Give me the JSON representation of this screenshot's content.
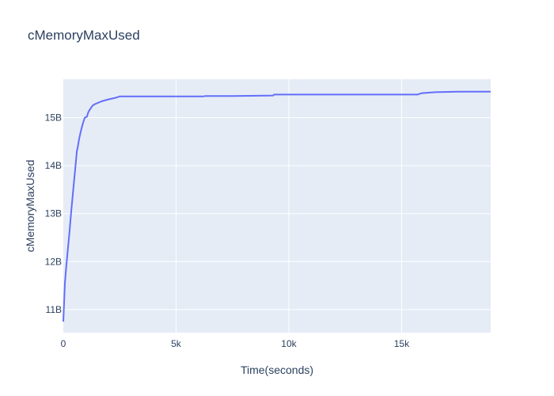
{
  "chart_data": {
    "type": "line",
    "title": "cMemoryMaxUsed",
    "xlabel": "Time(seconds)",
    "ylabel": "cMemoryMaxUsed",
    "xlim": [
      0,
      18950
    ],
    "ylim": [
      10.52,
      15.8
    ],
    "grid": true,
    "x_ticks": [
      {
        "value": 0,
        "label": "0"
      },
      {
        "value": 5000,
        "label": "5k"
      },
      {
        "value": 10000,
        "label": "10k"
      },
      {
        "value": 15000,
        "label": "15k"
      }
    ],
    "y_ticks": [
      {
        "value": 11,
        "label": "11B"
      },
      {
        "value": 12,
        "label": "12B"
      },
      {
        "value": 13,
        "label": "13B"
      },
      {
        "value": 14,
        "label": "14B"
      },
      {
        "value": 15,
        "label": "15B"
      }
    ],
    "series": [
      {
        "color": "#636efa",
        "x": [
          0,
          70,
          140,
          210,
          280,
          350,
          420,
          490,
          560,
          600,
          640,
          700,
          770,
          850,
          950,
          1050,
          1100,
          1150,
          1300,
          1400,
          1700,
          2000,
          2300,
          2500,
          3500,
          5000,
          6200,
          6300,
          7500,
          9300,
          9350,
          10000,
          12000,
          14000,
          15700,
          15900,
          16500,
          17500,
          18950
        ],
        "y": [
          10.75,
          11.55,
          11.95,
          12.3,
          12.65,
          13.05,
          13.4,
          13.75,
          14.1,
          14.3,
          14.38,
          14.55,
          14.7,
          14.85,
          15.0,
          15.02,
          15.1,
          15.15,
          15.25,
          15.28,
          15.34,
          15.38,
          15.41,
          15.44,
          15.44,
          15.44,
          15.44,
          15.45,
          15.45,
          15.46,
          15.48,
          15.48,
          15.48,
          15.48,
          15.48,
          15.51,
          15.53,
          15.54,
          15.54
        ]
      }
    ]
  }
}
